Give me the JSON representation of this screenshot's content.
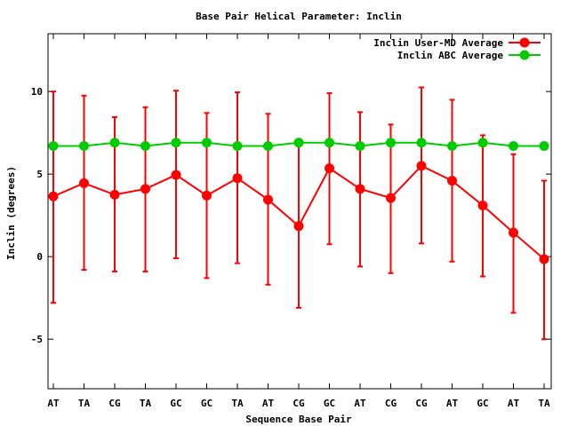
{
  "chart_data": {
    "type": "line",
    "title": "Base Pair Helical Parameter: Inclin",
    "xlabel": "Sequence Base Pair",
    "ylabel": "Inclin (degrees)",
    "categories": [
      "AT",
      "TA",
      "CG",
      "TA",
      "GC",
      "GC",
      "TA",
      "AT",
      "CG",
      "GC",
      "AT",
      "CG",
      "CG",
      "AT",
      "GC",
      "AT",
      "TA"
    ],
    "ylim": [
      -8,
      13.5
    ],
    "yticks": [
      -5,
      0,
      5,
      10
    ],
    "yticklabels": [
      "-5",
      "0",
      "5",
      "10"
    ],
    "legend_position": "top-right",
    "grid": false,
    "series": [
      {
        "name": "Inclin User-MD Average",
        "color": "#ff0000",
        "values": [
          3.65,
          4.45,
          3.75,
          4.1,
          4.95,
          3.7,
          4.75,
          3.45,
          1.85,
          5.35,
          4.1,
          3.55,
          5.5,
          4.6,
          3.1,
          1.45,
          -0.15
        ],
        "err_low": [
          -2.8,
          -0.8,
          -0.9,
          -0.9,
          -0.1,
          -1.3,
          -0.4,
          -1.7,
          -3.1,
          0.75,
          -0.6,
          -1.0,
          0.8,
          -0.3,
          -1.2,
          -3.4,
          -5.0
        ],
        "err_high": [
          10.0,
          9.75,
          8.45,
          9.05,
          10.05,
          8.7,
          9.95,
          8.65,
          6.95,
          9.9,
          8.75,
          8.0,
          10.25,
          9.5,
          7.35,
          6.2,
          4.6
        ]
      },
      {
        "name": "Inclin ABC Average",
        "color": "#00cc00",
        "values": [
          6.7,
          6.7,
          6.9,
          6.7,
          6.9,
          6.9,
          6.7,
          6.7,
          6.9,
          6.9,
          6.7,
          6.9,
          6.9,
          6.7,
          6.9,
          6.7,
          6.7
        ]
      }
    ]
  }
}
